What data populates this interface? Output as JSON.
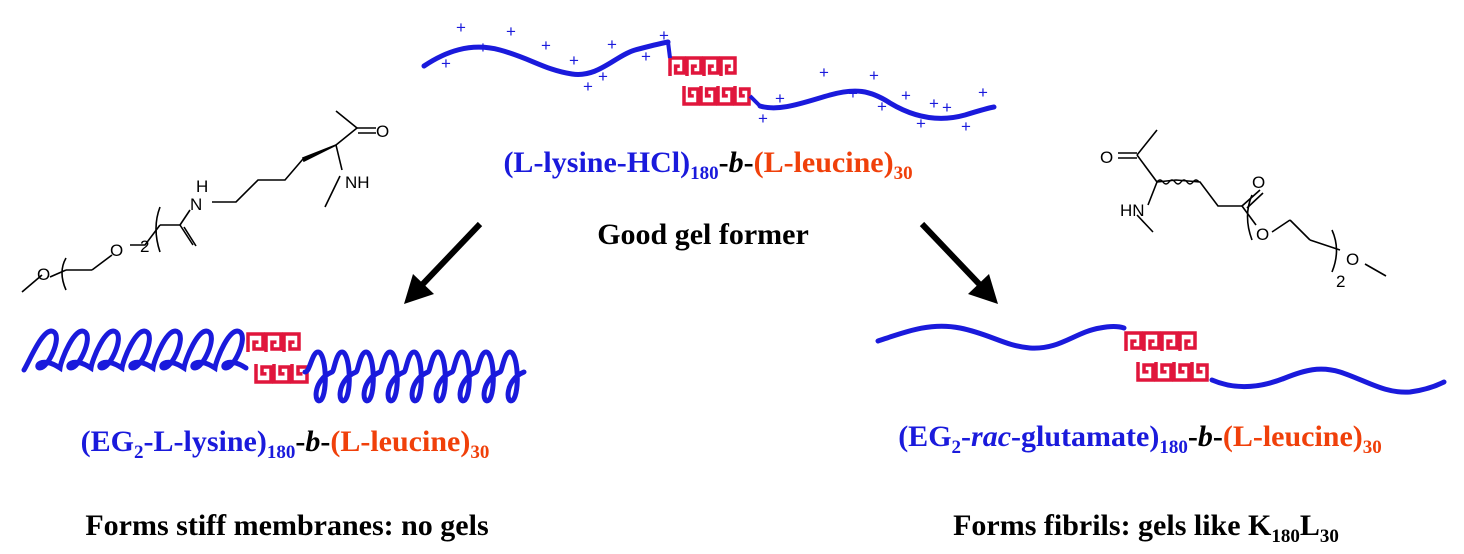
{
  "colors": {
    "blue": "#1a1adc",
    "red": "#e0163c",
    "label_red": "#f0400a",
    "black": "#000000"
  },
  "top": {
    "label": {
      "p1": "(L-lysine-HCl)",
      "s1": "180",
      "p2": "-",
      "p3": "b",
      "p4": "-",
      "p5": "(L-leucine)",
      "s2": "30"
    },
    "caption": "Good gel former",
    "charge_symbol": "+"
  },
  "left": {
    "label": {
      "p1": "(EG",
      "s0": "2",
      "p1b": "-L-lysine)",
      "s1": "180",
      "p2": "-",
      "p3": "b",
      "p4": "-",
      "p5": "(L-leucine)",
      "s2": "30"
    },
    "caption": "Forms stiff membranes: no gels",
    "structure_labels": {
      "o_carbonyl": "O",
      "nh": "NH",
      "h": "H",
      "n": "N",
      "o1": "O",
      "o2": "O",
      "sub": "2"
    }
  },
  "right": {
    "label": {
      "p1": "(EG",
      "s0": "2",
      "p1b": "-",
      "p_it": "rac",
      "p1c": "-glutamate)",
      "s1": "180",
      "p2": "-",
      "p3": "b",
      "p4": "-",
      "p5": "(L-leucine)",
      "s2": "30"
    },
    "caption": {
      "text": "Forms fibrils: gels like K",
      "s1": "180",
      "mid": "L",
      "s2": "30"
    },
    "structure_labels": {
      "o_carbonyl": "O",
      "hn": "HN",
      "o_ester": "O",
      "o1": "O",
      "o2": "O",
      "sub": "2"
    }
  }
}
